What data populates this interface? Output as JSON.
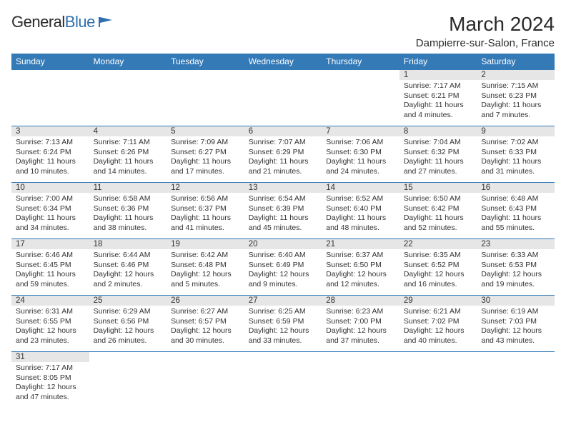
{
  "logo": {
    "text1": "General",
    "text2": "Blue"
  },
  "header": {
    "month_year": "March 2024",
    "location": "Dampierre-sur-Salon, France"
  },
  "colors": {
    "header_bg": "#337ab7",
    "header_fg": "#ffffff",
    "daynum_bg": "#e6e6e6",
    "cell_border": "#337ab7",
    "text": "#333333",
    "logo_blue": "#2f6fb0",
    "background": "#ffffff"
  },
  "day_names": [
    "Sunday",
    "Monday",
    "Tuesday",
    "Wednesday",
    "Thursday",
    "Friday",
    "Saturday"
  ],
  "calendar": {
    "type": "table",
    "columns": 7,
    "rows": 6,
    "weeks": [
      [
        {
          "day": "",
          "sunrise": "",
          "sunset": "",
          "daylight": ""
        },
        {
          "day": "",
          "sunrise": "",
          "sunset": "",
          "daylight": ""
        },
        {
          "day": "",
          "sunrise": "",
          "sunset": "",
          "daylight": ""
        },
        {
          "day": "",
          "sunrise": "",
          "sunset": "",
          "daylight": ""
        },
        {
          "day": "",
          "sunrise": "",
          "sunset": "",
          "daylight": ""
        },
        {
          "day": "1",
          "sunrise": "Sunrise: 7:17 AM",
          "sunset": "Sunset: 6:21 PM",
          "daylight": "Daylight: 11 hours and 4 minutes."
        },
        {
          "day": "2",
          "sunrise": "Sunrise: 7:15 AM",
          "sunset": "Sunset: 6:23 PM",
          "daylight": "Daylight: 11 hours and 7 minutes."
        }
      ],
      [
        {
          "day": "3",
          "sunrise": "Sunrise: 7:13 AM",
          "sunset": "Sunset: 6:24 PM",
          "daylight": "Daylight: 11 hours and 10 minutes."
        },
        {
          "day": "4",
          "sunrise": "Sunrise: 7:11 AM",
          "sunset": "Sunset: 6:26 PM",
          "daylight": "Daylight: 11 hours and 14 minutes."
        },
        {
          "day": "5",
          "sunrise": "Sunrise: 7:09 AM",
          "sunset": "Sunset: 6:27 PM",
          "daylight": "Daylight: 11 hours and 17 minutes."
        },
        {
          "day": "6",
          "sunrise": "Sunrise: 7:07 AM",
          "sunset": "Sunset: 6:29 PM",
          "daylight": "Daylight: 11 hours and 21 minutes."
        },
        {
          "day": "7",
          "sunrise": "Sunrise: 7:06 AM",
          "sunset": "Sunset: 6:30 PM",
          "daylight": "Daylight: 11 hours and 24 minutes."
        },
        {
          "day": "8",
          "sunrise": "Sunrise: 7:04 AM",
          "sunset": "Sunset: 6:32 PM",
          "daylight": "Daylight: 11 hours and 27 minutes."
        },
        {
          "day": "9",
          "sunrise": "Sunrise: 7:02 AM",
          "sunset": "Sunset: 6:33 PM",
          "daylight": "Daylight: 11 hours and 31 minutes."
        }
      ],
      [
        {
          "day": "10",
          "sunrise": "Sunrise: 7:00 AM",
          "sunset": "Sunset: 6:34 PM",
          "daylight": "Daylight: 11 hours and 34 minutes."
        },
        {
          "day": "11",
          "sunrise": "Sunrise: 6:58 AM",
          "sunset": "Sunset: 6:36 PM",
          "daylight": "Daylight: 11 hours and 38 minutes."
        },
        {
          "day": "12",
          "sunrise": "Sunrise: 6:56 AM",
          "sunset": "Sunset: 6:37 PM",
          "daylight": "Daylight: 11 hours and 41 minutes."
        },
        {
          "day": "13",
          "sunrise": "Sunrise: 6:54 AM",
          "sunset": "Sunset: 6:39 PM",
          "daylight": "Daylight: 11 hours and 45 minutes."
        },
        {
          "day": "14",
          "sunrise": "Sunrise: 6:52 AM",
          "sunset": "Sunset: 6:40 PM",
          "daylight": "Daylight: 11 hours and 48 minutes."
        },
        {
          "day": "15",
          "sunrise": "Sunrise: 6:50 AM",
          "sunset": "Sunset: 6:42 PM",
          "daylight": "Daylight: 11 hours and 52 minutes."
        },
        {
          "day": "16",
          "sunrise": "Sunrise: 6:48 AM",
          "sunset": "Sunset: 6:43 PM",
          "daylight": "Daylight: 11 hours and 55 minutes."
        }
      ],
      [
        {
          "day": "17",
          "sunrise": "Sunrise: 6:46 AM",
          "sunset": "Sunset: 6:45 PM",
          "daylight": "Daylight: 11 hours and 59 minutes."
        },
        {
          "day": "18",
          "sunrise": "Sunrise: 6:44 AM",
          "sunset": "Sunset: 6:46 PM",
          "daylight": "Daylight: 12 hours and 2 minutes."
        },
        {
          "day": "19",
          "sunrise": "Sunrise: 6:42 AM",
          "sunset": "Sunset: 6:48 PM",
          "daylight": "Daylight: 12 hours and 5 minutes."
        },
        {
          "day": "20",
          "sunrise": "Sunrise: 6:40 AM",
          "sunset": "Sunset: 6:49 PM",
          "daylight": "Daylight: 12 hours and 9 minutes."
        },
        {
          "day": "21",
          "sunrise": "Sunrise: 6:37 AM",
          "sunset": "Sunset: 6:50 PM",
          "daylight": "Daylight: 12 hours and 12 minutes."
        },
        {
          "day": "22",
          "sunrise": "Sunrise: 6:35 AM",
          "sunset": "Sunset: 6:52 PM",
          "daylight": "Daylight: 12 hours and 16 minutes."
        },
        {
          "day": "23",
          "sunrise": "Sunrise: 6:33 AM",
          "sunset": "Sunset: 6:53 PM",
          "daylight": "Daylight: 12 hours and 19 minutes."
        }
      ],
      [
        {
          "day": "24",
          "sunrise": "Sunrise: 6:31 AM",
          "sunset": "Sunset: 6:55 PM",
          "daylight": "Daylight: 12 hours and 23 minutes."
        },
        {
          "day": "25",
          "sunrise": "Sunrise: 6:29 AM",
          "sunset": "Sunset: 6:56 PM",
          "daylight": "Daylight: 12 hours and 26 minutes."
        },
        {
          "day": "26",
          "sunrise": "Sunrise: 6:27 AM",
          "sunset": "Sunset: 6:57 PM",
          "daylight": "Daylight: 12 hours and 30 minutes."
        },
        {
          "day": "27",
          "sunrise": "Sunrise: 6:25 AM",
          "sunset": "Sunset: 6:59 PM",
          "daylight": "Daylight: 12 hours and 33 minutes."
        },
        {
          "day": "28",
          "sunrise": "Sunrise: 6:23 AM",
          "sunset": "Sunset: 7:00 PM",
          "daylight": "Daylight: 12 hours and 37 minutes."
        },
        {
          "day": "29",
          "sunrise": "Sunrise: 6:21 AM",
          "sunset": "Sunset: 7:02 PM",
          "daylight": "Daylight: 12 hours and 40 minutes."
        },
        {
          "day": "30",
          "sunrise": "Sunrise: 6:19 AM",
          "sunset": "Sunset: 7:03 PM",
          "daylight": "Daylight: 12 hours and 43 minutes."
        }
      ],
      [
        {
          "day": "31",
          "sunrise": "Sunrise: 7:17 AM",
          "sunset": "Sunset: 8:05 PM",
          "daylight": "Daylight: 12 hours and 47 minutes."
        },
        {
          "day": "",
          "sunrise": "",
          "sunset": "",
          "daylight": ""
        },
        {
          "day": "",
          "sunrise": "",
          "sunset": "",
          "daylight": ""
        },
        {
          "day": "",
          "sunrise": "",
          "sunset": "",
          "daylight": ""
        },
        {
          "day": "",
          "sunrise": "",
          "sunset": "",
          "daylight": ""
        },
        {
          "day": "",
          "sunrise": "",
          "sunset": "",
          "daylight": ""
        },
        {
          "day": "",
          "sunrise": "",
          "sunset": "",
          "daylight": ""
        }
      ]
    ]
  }
}
